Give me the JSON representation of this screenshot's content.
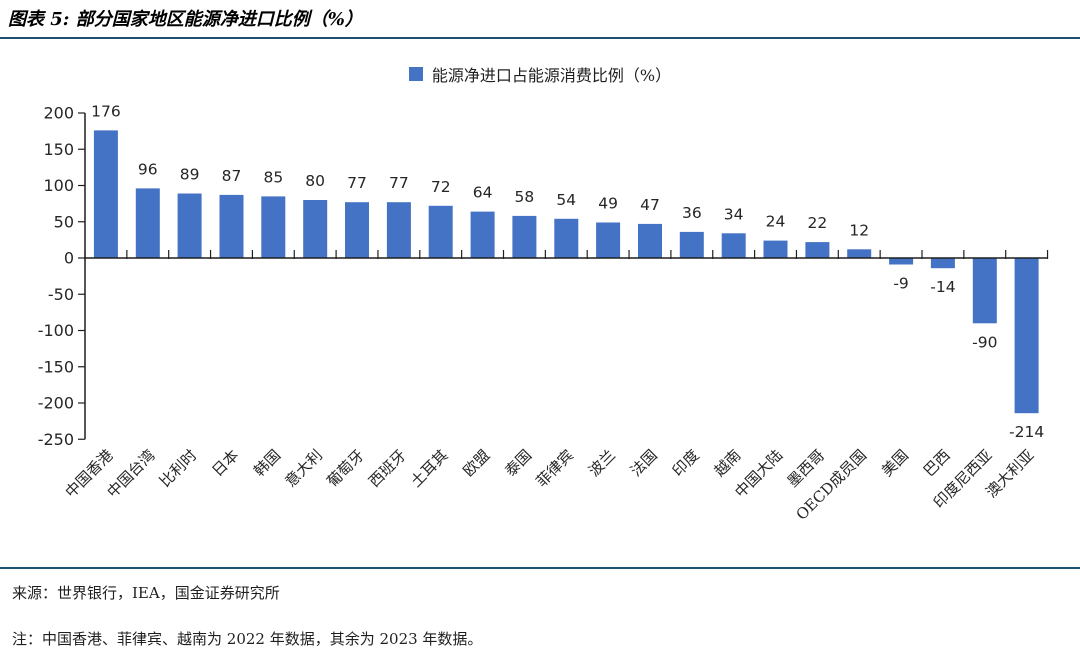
{
  "header": {
    "title": "图表 5: 部分国家地区能源净进口比例（%）"
  },
  "legend": {
    "label": "能源净进口占能源消费比例（%）",
    "color": "#4472C4"
  },
  "chart_data": {
    "type": "bar",
    "title": "图表 5: 部分国家地区能源净进口比例（%）",
    "legend": [
      "能源净进口占能源消费比例（%）"
    ],
    "legend_position": "top-center",
    "categories": [
      "中国香港",
      "中国台湾",
      "比利时",
      "日本",
      "韩国",
      "意大利",
      "葡萄牙",
      "西班牙",
      "土耳其",
      "欧盟",
      "泰国",
      "菲律宾",
      "波兰",
      "法国",
      "印度",
      "越南",
      "中国大陆",
      "墨西哥",
      "OECD成员国",
      "美国",
      "巴西",
      "印度尼西亚",
      "澳大利亚"
    ],
    "values": [
      176,
      96,
      89,
      87,
      85,
      80,
      77,
      77,
      72,
      64,
      58,
      54,
      49,
      47,
      36,
      34,
      24,
      22,
      12,
      -9,
      -14,
      -90,
      -214
    ],
    "xlabel": "",
    "ylabel": "",
    "ylim": [
      -250,
      200
    ],
    "ytick_step": 50,
    "grid": false,
    "value_labels": true,
    "bar_color": "#4472C4",
    "axis_color": "#1f1f1f",
    "label_color": "#262626",
    "category_rotation_deg": 45
  },
  "footer": {
    "source": "来源：世界银行，IEA，国金证券研究所",
    "note": "注：中国香港、菲律宾、越南为 2022 年数据，其余为 2023 年数据。",
    "rule_color": "#1C5170"
  }
}
